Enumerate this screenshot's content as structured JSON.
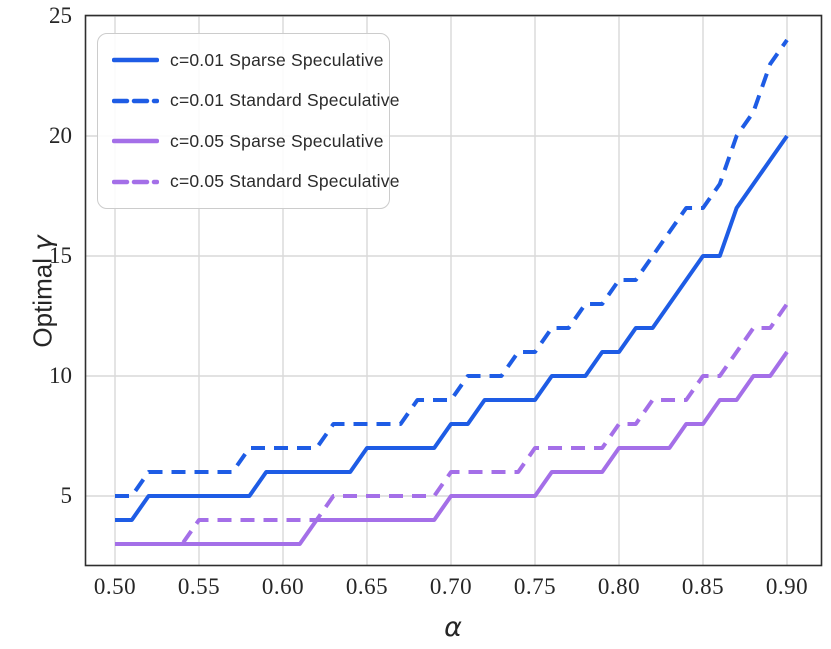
{
  "chart_data": {
    "type": "line",
    "title": "",
    "xlabel": "α",
    "ylabel": "Optimal γ",
    "ylabel_text": "Optimal",
    "ylabel_symbol": "γ",
    "grid": true,
    "legend_position": "upper left",
    "xlim": [
      0.482,
      0.921
    ],
    "ylim": [
      2.1,
      25.0
    ],
    "xticklabels": [
      "0.50",
      "0.55",
      "0.60",
      "0.65",
      "0.70",
      "0.75",
      "0.80",
      "0.85",
      "0.90"
    ],
    "yticklabels": [
      "5",
      "10",
      "15",
      "20",
      "25"
    ],
    "colors": {
      "blue": "#1e5ce5",
      "purple": "#a46fe8",
      "grid": "#d9d9d9",
      "spine": "#2e2e2e",
      "text": "#262626"
    },
    "x": [
      0.5,
      0.51,
      0.52,
      0.53,
      0.54,
      0.55,
      0.56,
      0.57,
      0.58,
      0.59,
      0.6,
      0.61,
      0.62,
      0.63,
      0.64,
      0.65,
      0.66,
      0.67,
      0.68,
      0.69,
      0.7,
      0.71,
      0.72,
      0.73,
      0.74,
      0.75,
      0.76,
      0.77,
      0.78,
      0.79,
      0.8,
      0.81,
      0.82,
      0.83,
      0.84,
      0.85,
      0.86,
      0.87,
      0.88,
      0.89,
      0.9
    ],
    "series": [
      {
        "name": "c=0.01 Sparse Speculative",
        "style": "solid",
        "color": "#1e5ce5",
        "values": [
          4,
          4,
          5,
          5,
          5,
          5,
          5,
          5,
          5,
          6,
          6,
          6,
          6,
          6,
          6,
          7,
          7,
          7,
          7,
          7,
          8,
          8,
          9,
          9,
          9,
          9,
          10,
          10,
          10,
          11,
          11,
          12,
          12,
          13,
          14,
          15,
          15,
          17,
          18,
          19,
          20
        ]
      },
      {
        "name": "c=0.01 Standard Speculative",
        "style": "dashed",
        "color": "#1e5ce5",
        "values": [
          5,
          5,
          6,
          6,
          6,
          6,
          6,
          6,
          7,
          7,
          7,
          7,
          7,
          8,
          8,
          8,
          8,
          8,
          9,
          9,
          9,
          10,
          10,
          10,
          11,
          11,
          12,
          12,
          13,
          13,
          14,
          14,
          15,
          16,
          17,
          17,
          18,
          20,
          21,
          23,
          24
        ]
      },
      {
        "name": "c=0.05 Sparse Speculative",
        "style": "solid",
        "color": "#a46fe8",
        "values": [
          3,
          3,
          3,
          3,
          3,
          3,
          3,
          3,
          3,
          3,
          3,
          3,
          4,
          4,
          4,
          4,
          4,
          4,
          4,
          4,
          5,
          5,
          5,
          5,
          5,
          5,
          6,
          6,
          6,
          6,
          7,
          7,
          7,
          7,
          8,
          8,
          9,
          9,
          10,
          10,
          11
        ]
      },
      {
        "name": "c=0.05 Standard Speculative",
        "style": "dashed",
        "color": "#a46fe8",
        "values": [
          3,
          3,
          3,
          3,
          3,
          4,
          4,
          4,
          4,
          4,
          4,
          4,
          4,
          5,
          5,
          5,
          5,
          5,
          5,
          5,
          6,
          6,
          6,
          6,
          6,
          7,
          7,
          7,
          7,
          7,
          8,
          8,
          9,
          9,
          9,
          10,
          10,
          11,
          12,
          12,
          13
        ]
      }
    ]
  }
}
